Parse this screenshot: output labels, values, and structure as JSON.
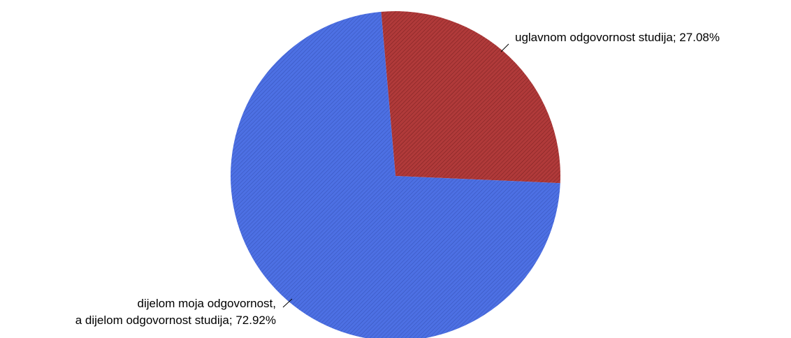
{
  "chart_data": {
    "type": "pie",
    "slices": [
      {
        "label": "uglavnom odgovornost studija",
        "label_lines": [
          "uglavnom odgovornost studija; 27.08%"
        ],
        "value": 27.08,
        "percent_text": "27.08%",
        "color": "#B03A3A"
      },
      {
        "label": "dijelom moja odgovornost, a dijelom odgovornost studija",
        "label_lines": [
          "dijelom moja odgovornost,",
          "a dijelom odgovornost studija; 72.92%"
        ],
        "value": 72.92,
        "percent_text": "72.92%",
        "color": "#4A6EE0"
      }
    ],
    "start_angle_deg": -95,
    "direction": "clockwise",
    "slice_texture": "diagonal-hatch",
    "legend": "none"
  }
}
